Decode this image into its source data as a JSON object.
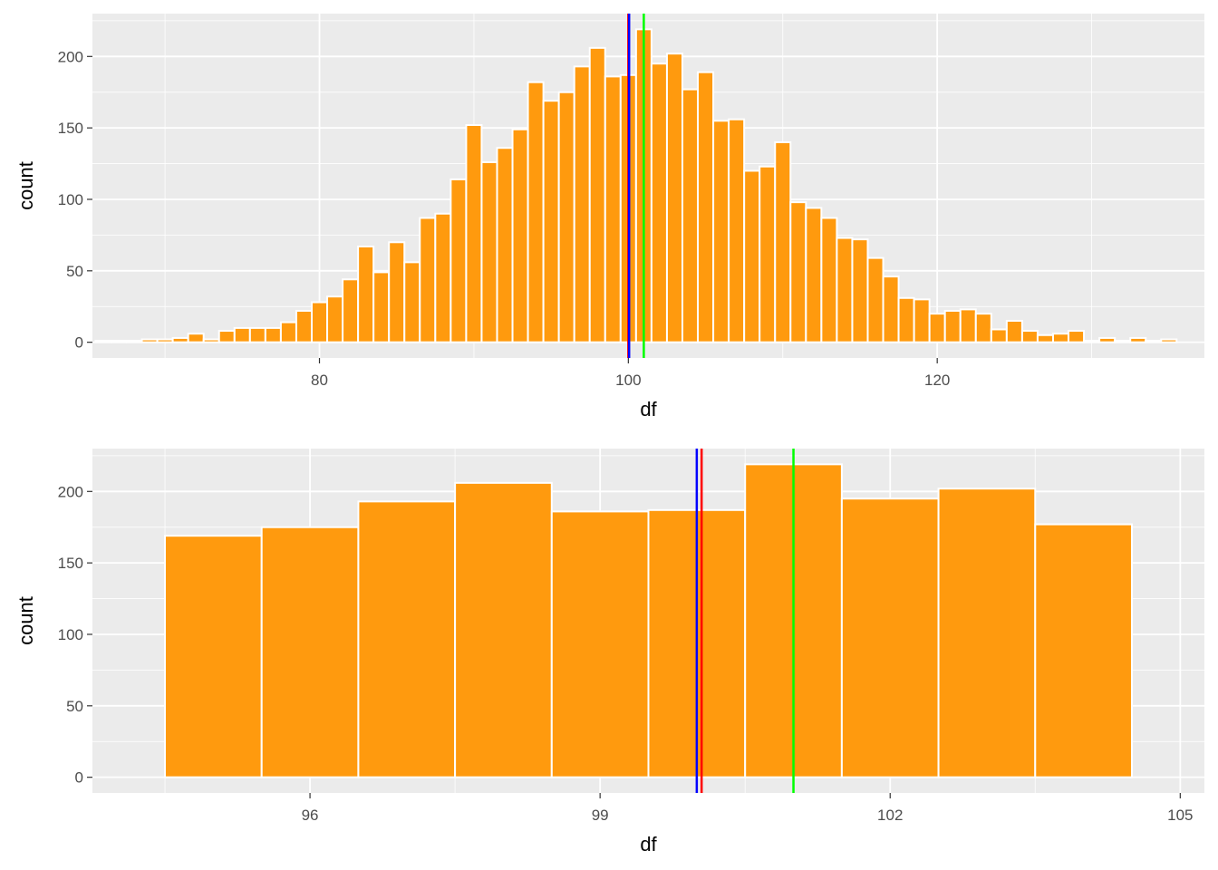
{
  "chart_data": [
    {
      "type": "bar",
      "variant": "histogram",
      "xlabel": "df",
      "ylabel": "count",
      "xlim": [
        65.3,
        137.3
      ],
      "ylim": [
        -11,
        230
      ],
      "x_ticks": [
        80,
        100,
        120
      ],
      "y_ticks": [
        0,
        50,
        100,
        150,
        200
      ],
      "x_minor_ticks": [
        70,
        90,
        110,
        130
      ],
      "y_minor_ticks": [
        25,
        75,
        125,
        175,
        225
      ],
      "grid": true,
      "bin_width": 1,
      "bar_fill": "#FF9A0E",
      "bar_outline": "#FFFFFF",
      "bins": [
        [
          66,
          1
        ],
        [
          67,
          1
        ],
        [
          68,
          1
        ],
        [
          69,
          2
        ],
        [
          70,
          2
        ],
        [
          71,
          3
        ],
        [
          72,
          6
        ],
        [
          73,
          2
        ],
        [
          74,
          8
        ],
        [
          75,
          10
        ],
        [
          76,
          10
        ],
        [
          77,
          10
        ],
        [
          78,
          14
        ],
        [
          79,
          22
        ],
        [
          80,
          28
        ],
        [
          81,
          32
        ],
        [
          82,
          44
        ],
        [
          83,
          67
        ],
        [
          84,
          49
        ],
        [
          85,
          70
        ],
        [
          86,
          56
        ],
        [
          87,
          87
        ],
        [
          88,
          90
        ],
        [
          89,
          114
        ],
        [
          90,
          152
        ],
        [
          91,
          126
        ],
        [
          92,
          136
        ],
        [
          93,
          149
        ],
        [
          94,
          182
        ],
        [
          95,
          169
        ],
        [
          96,
          175
        ],
        [
          97,
          193
        ],
        [
          98,
          206
        ],
        [
          99,
          186
        ],
        [
          100,
          187
        ],
        [
          101,
          219
        ],
        [
          102,
          195
        ],
        [
          103,
          202
        ],
        [
          104,
          177
        ],
        [
          105,
          189
        ],
        [
          106,
          155
        ],
        [
          107,
          156
        ],
        [
          108,
          120
        ],
        [
          109,
          123
        ],
        [
          110,
          140
        ],
        [
          111,
          98
        ],
        [
          112,
          94
        ],
        [
          113,
          87
        ],
        [
          114,
          73
        ],
        [
          115,
          72
        ],
        [
          116,
          59
        ],
        [
          117,
          46
        ],
        [
          118,
          31
        ],
        [
          119,
          30
        ],
        [
          120,
          20
        ],
        [
          121,
          22
        ],
        [
          122,
          23
        ],
        [
          123,
          20
        ],
        [
          124,
          9
        ],
        [
          125,
          15
        ],
        [
          126,
          8
        ],
        [
          127,
          5
        ],
        [
          128,
          6
        ],
        [
          129,
          8
        ],
        [
          130,
          1
        ],
        [
          131,
          3
        ],
        [
          132,
          1
        ],
        [
          133,
          3
        ],
        [
          134,
          1
        ],
        [
          135,
          2
        ]
      ],
      "vlines": [
        {
          "x": 100.0,
          "color": "#FF0000"
        },
        {
          "x": 100.05,
          "color": "#0000FF"
        },
        {
          "x": 101.0,
          "color": "#00FF00"
        }
      ]
    },
    {
      "type": "bar",
      "variant": "histogram",
      "xlabel": "df",
      "ylabel": "count",
      "xlim": [
        93.75,
        105.25
      ],
      "ylim": [
        -11,
        230
      ],
      "x_ticks": [
        96,
        99,
        102,
        105
      ],
      "y_ticks": [
        0,
        50,
        100,
        150,
        200
      ],
      "x_minor_ticks": [
        94.5,
        97.5,
        100.5,
        103.5
      ],
      "y_minor_ticks": [
        25,
        75,
        125,
        175,
        225
      ],
      "grid": true,
      "bin_width": 1,
      "bar_fill": "#FF9A0E",
      "bar_outline": "#FFFFFF",
      "bins": [
        [
          95,
          169
        ],
        [
          96,
          175
        ],
        [
          97,
          193
        ],
        [
          98,
          206
        ],
        [
          99,
          186
        ],
        [
          100,
          187
        ],
        [
          101,
          219
        ],
        [
          102,
          195
        ],
        [
          103,
          202
        ],
        [
          104,
          177
        ]
      ],
      "vlines": [
        {
          "x": 100.05,
          "color": "#FF0000"
        },
        {
          "x": 100.0,
          "color": "#0000FF"
        },
        {
          "x": 101.0,
          "color": "#00FF00"
        }
      ]
    }
  ]
}
